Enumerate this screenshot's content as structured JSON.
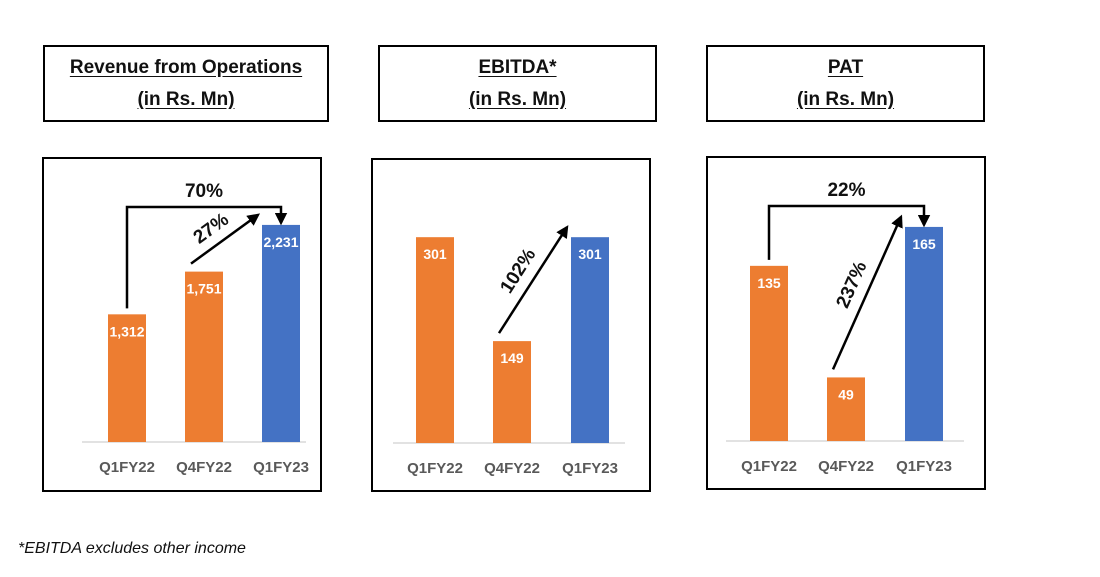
{
  "footnote": "*EBITDA excludes other income",
  "colors": {
    "previous": "#ED7D31",
    "current": "#4472C4",
    "axis": "#D9D9D9",
    "text": "#595959"
  },
  "chart_data": [
    {
      "type": "bar",
      "title_line1": "Revenue from Operations",
      "title_line2": "(in Rs. Mn)",
      "categories": [
        "Q1FY22",
        "Q4FY22",
        "Q1FY23"
      ],
      "values": [
        1312,
        1751,
        2231
      ],
      "value_labels": [
        "1,312",
        "1,751",
        "2,231"
      ],
      "ylim": [
        0,
        2600
      ],
      "annotations": [
        {
          "text": "70%",
          "kind": "bracket",
          "from": 0,
          "to": 2
        },
        {
          "text": "27%",
          "kind": "arrow",
          "from": 1,
          "to": 2
        }
      ]
    },
    {
      "type": "bar",
      "title_line1": "EBITDA*",
      "title_line2": "(in Rs. Mn)",
      "categories": [
        "Q1FY22",
        "Q4FY22",
        "Q1FY23"
      ],
      "values": [
        301,
        149,
        301
      ],
      "value_labels": [
        "301",
        "149",
        "301"
      ],
      "ylim": [
        0,
        370
      ],
      "annotations": [
        {
          "text": "102%",
          "kind": "arrow",
          "from": 1,
          "to": 2
        }
      ]
    },
    {
      "type": "bar",
      "title_line1": "PAT",
      "title_line2": "(in Rs. Mn)",
      "categories": [
        "Q1FY22",
        "Q4FY22",
        "Q1FY23"
      ],
      "values": [
        135,
        49,
        165
      ],
      "value_labels": [
        "135",
        "49",
        "165"
      ],
      "ylim": [
        0,
        195
      ],
      "annotations": [
        {
          "text": "22%",
          "kind": "bracket",
          "from": 0,
          "to": 2
        },
        {
          "text": "237%",
          "kind": "arrow",
          "from": 1,
          "to": 2
        }
      ]
    }
  ]
}
